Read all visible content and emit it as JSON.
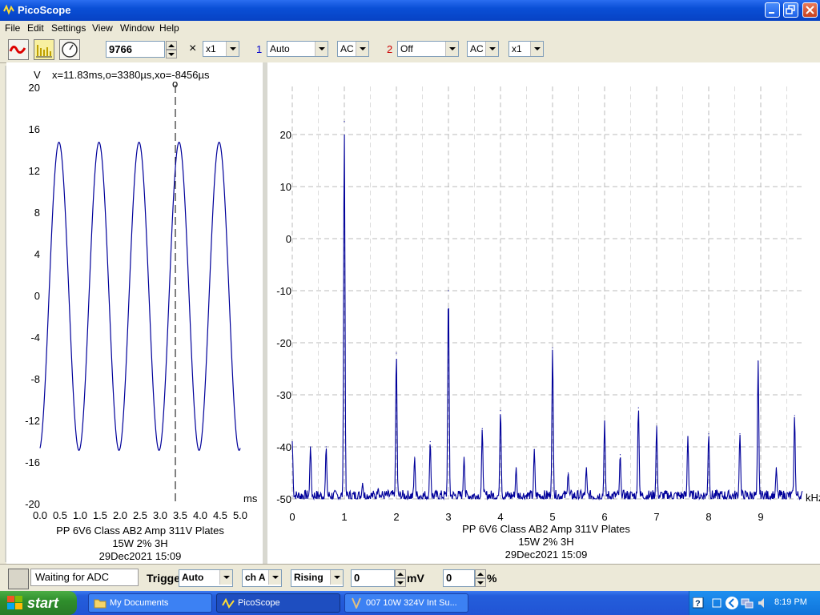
{
  "window": {
    "title": "PicoScope"
  },
  "menu": [
    "File",
    "Edit",
    "Settings",
    "View",
    "Window",
    "Help"
  ],
  "toolbar": {
    "samples": "9766",
    "times_label": "×",
    "times_value": "x1",
    "ch1_label": "1",
    "ch1_range": "Auto",
    "ch1_coupling": "AC",
    "ch2_label": "2",
    "ch2_range": "Off",
    "ch2_coupling": "AC",
    "ch2_mult": "x1"
  },
  "scope": {
    "y_unit": "V",
    "readout": "x=11.83ms,o=3380µs,xo=-8456µs",
    "marker": "o",
    "y_ticks": [
      "20",
      "16",
      "12",
      "8",
      "4",
      "0",
      "-4",
      "-8",
      "-12",
      "-16",
      "-20"
    ],
    "x_ticks": [
      "0.0",
      "0.5",
      "1.0",
      "1.5",
      "2.0",
      "2.5",
      "3.0",
      "3.5",
      "4.0",
      "4.5",
      "5.0"
    ],
    "x_unit": "ms",
    "caption": [
      "PP 6V6 Class AB2 Amp 311V Plates",
      "15W 2% 3H",
      "29Dec2021  15:09"
    ]
  },
  "spectrum": {
    "y_ticks": [
      "20",
      "10",
      "0",
      "-10",
      "-20",
      "-30",
      "-40",
      "-50"
    ],
    "x_ticks": [
      "0",
      "1",
      "2",
      "3",
      "4",
      "5",
      "6",
      "7",
      "8",
      "9"
    ],
    "x_unit": "kHz",
    "caption": [
      "PP 6V6 Class AB2 Amp 311V Plates",
      "15W 2% 3H",
      "29Dec2021  15:09"
    ]
  },
  "chart_data": [
    {
      "type": "line",
      "ylabel": "V",
      "xlabel": "ms",
      "xlim": [
        0,
        5.0
      ],
      "ylim": [
        -20,
        20
      ],
      "grid": false,
      "series": [
        {
          "amplitude": 14.8,
          "frequency_khz": 1.0,
          "x_range": [
            0,
            5.0
          ]
        }
      ],
      "cursor_x": 3.38
    },
    {
      "type": "line",
      "xlabel": "kHz",
      "xlim": [
        0,
        9.8
      ],
      "ylim": [
        -50,
        20
      ],
      "grid": true,
      "peaks": [
        {
          "x": 1.0,
          "y": 22.5
        },
        {
          "x": 2.0,
          "y": -22
        },
        {
          "x": 3.0,
          "y": -10
        },
        {
          "x": 4.0,
          "y": -33
        },
        {
          "x": 5.0,
          "y": -21
        },
        {
          "x": 6.0,
          "y": -35
        },
        {
          "x": 6.65,
          "y": -32.5
        },
        {
          "x": 7.0,
          "y": -36
        },
        {
          "x": 7.6,
          "y": -38
        },
        {
          "x": 8.0,
          "y": -37.5
        },
        {
          "x": 8.6,
          "y": -37.5
        },
        {
          "x": 8.95,
          "y": -23.5
        },
        {
          "x": 9.3,
          "y": -44
        },
        {
          "x": 9.65,
          "y": -34
        },
        {
          "x": 0.0,
          "y": -39
        },
        {
          "x": 0.35,
          "y": -40
        },
        {
          "x": 0.65,
          "y": -40
        },
        {
          "x": 2.35,
          "y": -42
        },
        {
          "x": 2.65,
          "y": -39
        },
        {
          "x": 3.3,
          "y": -42
        },
        {
          "x": 3.65,
          "y": -36.5
        },
        {
          "x": 4.3,
          "y": -44
        },
        {
          "x": 4.65,
          "y": -40.5
        },
        {
          "x": 5.3,
          "y": -45
        },
        {
          "x": 5.65,
          "y": -44
        },
        {
          "x": 6.3,
          "y": -41.5
        },
        {
          "x": 1.35,
          "y": -47
        },
        {
          "x": 1.65,
          "y": -48
        }
      ]
    }
  ],
  "status": {
    "adc": "Waiting for ADC",
    "trigger_label": "Trigger",
    "trigger_mode": "Auto",
    "trigger_channel": "ch A",
    "trigger_edge": "Rising",
    "threshold": "0",
    "threshold_unit": "mV",
    "percent": "0",
    "percent_unit": "%"
  },
  "taskbar": {
    "start": "start",
    "tasks": [
      "My Documents",
      "PicoScope",
      "007 10W 324V Int Su..."
    ],
    "clock": "8:19 PM"
  },
  "colors": {
    "trace": "#00009a",
    "titlebar": "#0a4fd6",
    "ch1": "#0000cc",
    "ch2": "#cc0000"
  }
}
